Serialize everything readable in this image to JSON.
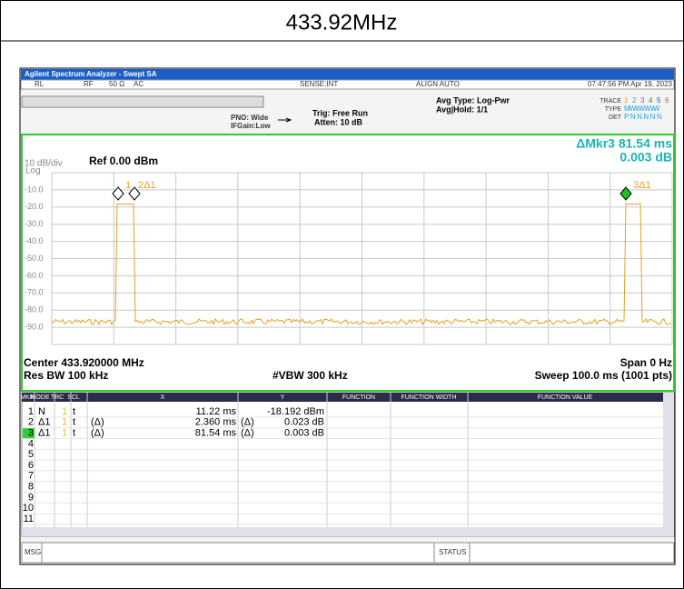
{
  "title": "433.92MHz",
  "window_title": "Agilent Spectrum Analyzer - Swept SA",
  "status_bar": [
    "RL",
    "RF",
    "50 Ω",
    "AC",
    "SENSE:INT",
    "ALIGN AUTO",
    "07:47:56 PM Apr 19, 2023"
  ],
  "settings": {
    "pno": "PNO: Wide",
    "ifgain": "IFGain:Low",
    "trig": "Trig: Free Run",
    "atten": "Atten: 10 dB",
    "avg_type": "Avg Type: Log-Pwr",
    "avg_hold": "Avg|Hold: 1/1"
  },
  "trace_panel": {
    "trace_label": "TRACE",
    "trace_numbers": [
      "1",
      "2",
      "3",
      "4",
      "5",
      "6"
    ],
    "type_label": "TYPE",
    "type_value": "MWWWWW",
    "det_label": "DET",
    "det_value": "PNNNNN"
  },
  "graph": {
    "marker_readout": "ΔMkr3 81.54 ms",
    "marker_value": "0.003 dB",
    "scale": "10 dB/div",
    "scale_type": "Log",
    "ref_level": "Ref 0.00 dBm",
    "y_labels": [
      "-10.0",
      "-20.0",
      "-30.0",
      "-40.0",
      "-50.0",
      "-60.0",
      "-70.0",
      "-80.0",
      "-90.0"
    ],
    "marker_labels": [
      "1",
      "2Δ1",
      "3Δ1"
    ],
    "center": "Center 433.920000 MHz",
    "span": "Span 0 Hz",
    "res_bw": "Res BW 100 kHz",
    "vbw": "#VBW 300 kHz",
    "sweep": "Sweep  100.0 ms (1001 pts)"
  },
  "marker_table": {
    "headers": [
      "MKR",
      "MODE",
      "TRC",
      "SCL",
      "X",
      "Y",
      "FUNCTION",
      "FUNCTION WIDTH",
      "FUNCTION VALUE"
    ],
    "rows": [
      {
        "mkr": "1",
        "mode": "N",
        "trc": "1",
        "scl": "t",
        "x": "11.22 ms",
        "y": "-18.192 dBm"
      },
      {
        "mkr": "2",
        "mode": "Δ1",
        "trc": "1",
        "scl": "t",
        "x_ref": "(Δ)",
        "x": "2.360 ms",
        "y_ref": "(Δ)",
        "y": "0.023 dB"
      },
      {
        "mkr": "3",
        "mode": "Δ1",
        "trc": "1",
        "scl": "t",
        "x_ref": "(Δ)",
        "x": "81.54 ms",
        "y_ref": "(Δ)",
        "y": "0.003 dB"
      },
      {
        "mkr": "4"
      },
      {
        "mkr": "5"
      },
      {
        "mkr": "6"
      },
      {
        "mkr": "7"
      },
      {
        "mkr": "8"
      },
      {
        "mkr": "9"
      },
      {
        "mkr": "10"
      },
      {
        "mkr": "11"
      }
    ]
  },
  "footer": {
    "msg": "MSG",
    "status": "STATUS"
  }
}
